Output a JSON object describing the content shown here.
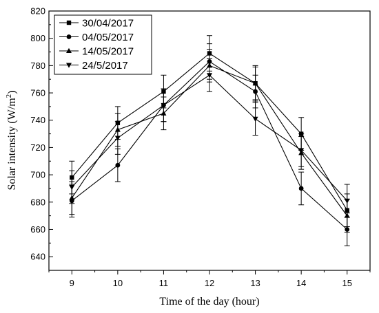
{
  "chart_data": {
    "type": "line",
    "xlabel": "Time of the day (hour)",
    "ylabel_main": "Solar intensity (W/m",
    "ylabel_sup": "2",
    "ylabel_end": ")",
    "x": [
      9,
      10,
      11,
      12,
      13,
      14,
      15
    ],
    "xlim": [
      8.5,
      15.5
    ],
    "ylim": [
      630,
      820
    ],
    "yticks": [
      640,
      660,
      680,
      700,
      720,
      740,
      760,
      780,
      800,
      820
    ],
    "legend_position": "top-left",
    "series": [
      {
        "name": "30/04/2017",
        "marker": "square",
        "values": [
          698,
          738,
          761,
          789,
          767,
          730,
          674
        ],
        "errors": [
          12,
          12,
          12,
          13,
          13,
          12,
          12
        ]
      },
      {
        "name": "04/05/2017",
        "marker": "circle",
        "values": [
          681,
          707,
          751,
          783,
          761,
          690,
          660
        ],
        "errors": [
          12,
          12,
          12,
          13,
          12,
          12,
          12
        ]
      },
      {
        "name": "14/05/2017",
        "marker": "triangle-up",
        "values": [
          683,
          733,
          745,
          780,
          767,
          716,
          670
        ],
        "errors": [
          12,
          12,
          12,
          12,
          12,
          12,
          12
        ]
      },
      {
        "name": "24/5/2017",
        "marker": "triangle-down",
        "values": [
          691,
          727,
          751,
          773,
          741,
          718,
          681
        ],
        "errors": [
          12,
          12,
          12,
          12,
          12,
          12,
          12
        ]
      }
    ]
  }
}
